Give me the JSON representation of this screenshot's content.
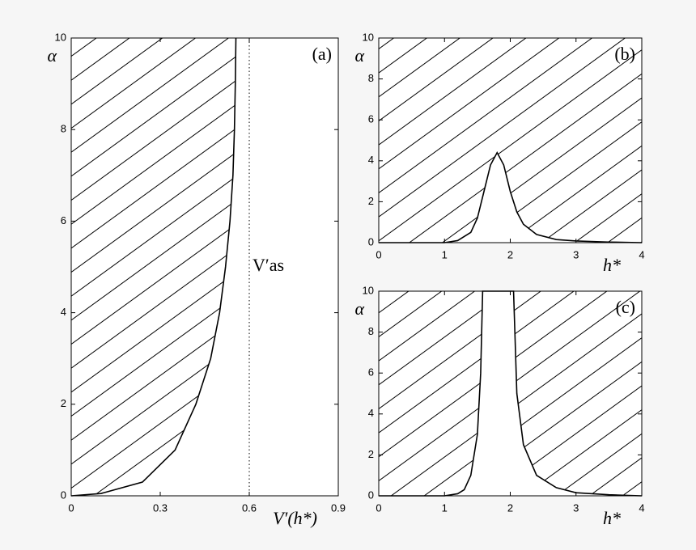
{
  "chart_data": [
    {
      "type": "line",
      "panel_label": "(a)",
      "x_label": "V′(h*)",
      "y_label": "α",
      "xlim": [
        0,
        0.9
      ],
      "ylim": [
        0,
        10
      ],
      "xticks": [
        0,
        0.3,
        0.6,
        0.9
      ],
      "yticks": [
        0,
        2,
        4,
        6,
        8,
        10
      ],
      "hatch": "left",
      "series": [
        {
          "color": "#000000",
          "x": [
            0,
            0.1,
            0.24,
            0.35,
            0.42,
            0.47,
            0.5,
            0.52,
            0.535,
            0.545,
            0.55,
            0.553,
            0.555
          ],
          "values": [
            0,
            0.05,
            0.3,
            1,
            2,
            3,
            4,
            5,
            6,
            7,
            8,
            9,
            10
          ]
        }
      ],
      "vline": 0.6,
      "vline_label": "V′as"
    },
    {
      "type": "line",
      "panel_label": "(b)",
      "x_label": "h*",
      "y_label": "α",
      "xlim": [
        0,
        4
      ],
      "ylim": [
        0,
        10
      ],
      "xticks": [
        0,
        1,
        2,
        3,
        4
      ],
      "yticks": [
        0,
        2,
        4,
        6,
        8,
        10
      ],
      "hatch": "above",
      "series": [
        {
          "color": "#000000",
          "x": [
            0,
            1,
            1.2,
            1.4,
            1.5,
            1.6,
            1.7,
            1.8,
            1.9,
            2,
            2.1,
            2.2,
            2.4,
            2.7,
            3,
            3.5,
            4
          ],
          "values": [
            0,
            0,
            0.1,
            0.5,
            1.2,
            2.5,
            3.8,
            4.4,
            3.8,
            2.5,
            1.5,
            0.9,
            0.4,
            0.15,
            0.08,
            0.03,
            0
          ]
        }
      ]
    },
    {
      "type": "line",
      "panel_label": "(c)",
      "x_label": "h*",
      "y_label": "α",
      "xlim": [
        0,
        4
      ],
      "ylim": [
        0,
        10
      ],
      "xticks": [
        0,
        1,
        2,
        3,
        4
      ],
      "yticks": [
        0,
        2,
        4,
        6,
        8,
        10
      ],
      "hatch": "above",
      "series": [
        {
          "color": "#000000",
          "x": [
            0,
            1,
            1.2,
            1.3,
            1.4,
            1.5,
            1.55,
            1.58,
            2.05,
            2.1,
            2.2,
            2.4,
            2.7,
            3,
            3.5,
            4
          ],
          "values": [
            0,
            0,
            0.1,
            0.3,
            1,
            3,
            6,
            10,
            10,
            5,
            2.5,
            1,
            0.4,
            0.15,
            0.05,
            0
          ]
        }
      ]
    }
  ]
}
